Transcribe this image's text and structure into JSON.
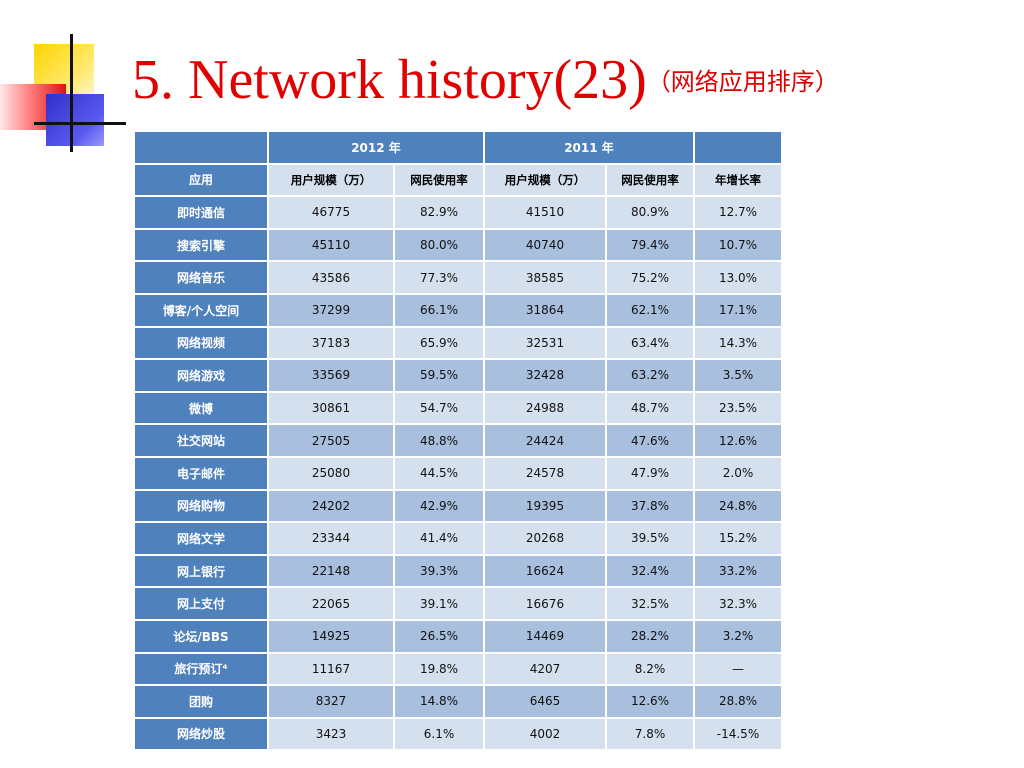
{
  "slide": {
    "title": "5. Network history(23)",
    "subtitle": "（网络应用排序）"
  },
  "table": {
    "year_headers": [
      "2012 年",
      "2011 年"
    ],
    "columns": [
      "应用",
      "用户规模（万）",
      "网民使用率",
      "用户规模（万）",
      "网民使用率",
      "年增长率"
    ],
    "rows": [
      [
        "即时通信",
        "46775",
        "82.9%",
        "41510",
        "80.9%",
        "12.7%"
      ],
      [
        "搜索引擎",
        "45110",
        "80.0%",
        "40740",
        "79.4%",
        "10.7%"
      ],
      [
        "网络音乐",
        "43586",
        "77.3%",
        "38585",
        "75.2%",
        "13.0%"
      ],
      [
        "博客/个人空间",
        "37299",
        "66.1%",
        "31864",
        "62.1%",
        "17.1%"
      ],
      [
        "网络视频",
        "37183",
        "65.9%",
        "32531",
        "63.4%",
        "14.3%"
      ],
      [
        "网络游戏",
        "33569",
        "59.5%",
        "32428",
        "63.2%",
        "3.5%"
      ],
      [
        "微博",
        "30861",
        "54.7%",
        "24988",
        "48.7%",
        "23.5%"
      ],
      [
        "社交网站",
        "27505",
        "48.8%",
        "24424",
        "47.6%",
        "12.6%"
      ],
      [
        "电子邮件",
        "25080",
        "44.5%",
        "24578",
        "47.9%",
        "2.0%"
      ],
      [
        "网络购物",
        "24202",
        "42.9%",
        "19395",
        "37.8%",
        "24.8%"
      ],
      [
        "网络文学",
        "23344",
        "41.4%",
        "20268",
        "39.5%",
        "15.2%"
      ],
      [
        "网上银行",
        "22148",
        "39.3%",
        "16624",
        "32.4%",
        "33.2%"
      ],
      [
        "网上支付",
        "22065",
        "39.1%",
        "16676",
        "32.5%",
        "32.3%"
      ],
      [
        "论坛/BBS",
        "14925",
        "26.5%",
        "14469",
        "28.2%",
        "3.2%"
      ],
      [
        "旅行预订⁴",
        "11167",
        "19.8%",
        "4207",
        "8.2%",
        "—"
      ],
      [
        "团购",
        "8327",
        "14.8%",
        "6465",
        "12.6%",
        "28.8%"
      ],
      [
        "网络炒股",
        "3423",
        "6.1%",
        "4002",
        "7.8%",
        "-14.5%"
      ]
    ]
  },
  "colors": {
    "title": "#e00000",
    "header_blue": "#4f81bd",
    "row_light": "#d5e0ee",
    "row_dark": "#a8bfdd"
  }
}
